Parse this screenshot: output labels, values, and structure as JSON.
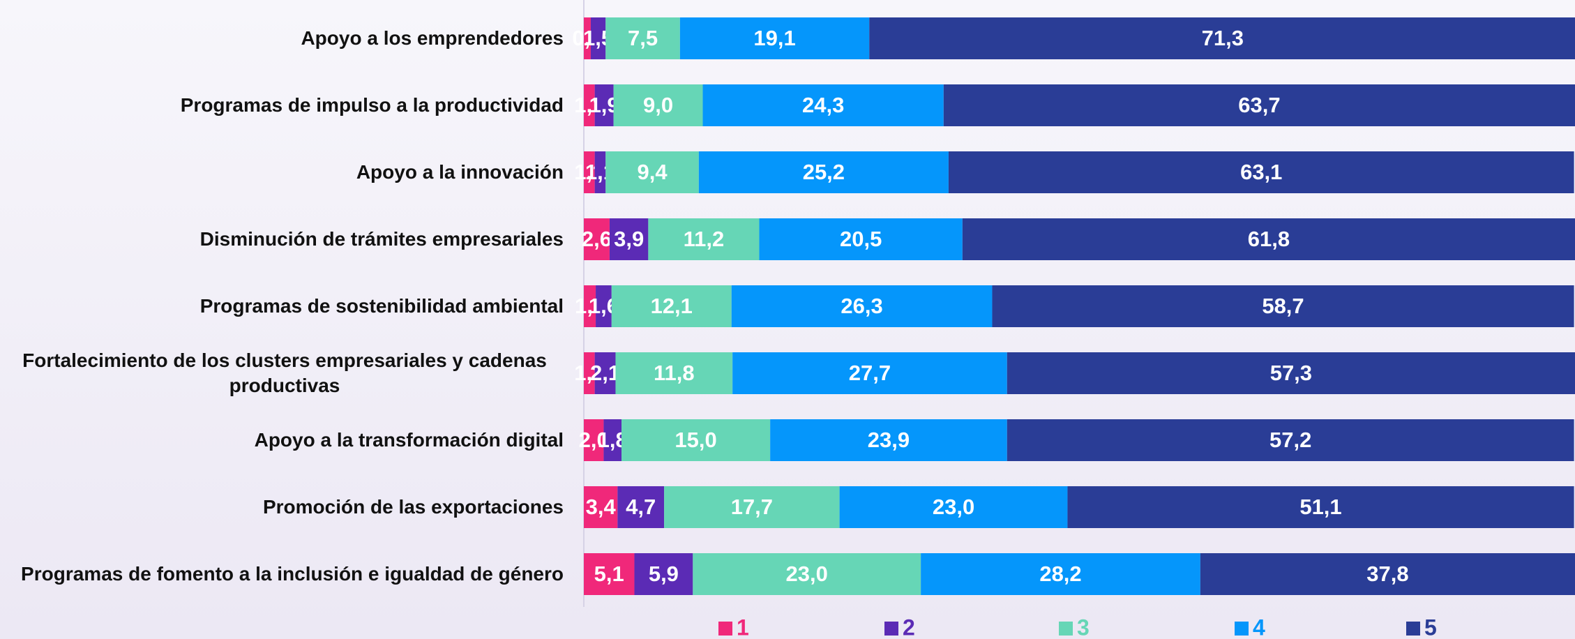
{
  "chart_data": {
    "type": "stacked-barh",
    "categories": [
      "Apoyo a los emprendedores",
      "Programas de impulso a la productividad",
      "Apoyo a la innovación",
      "Disminución de trámites empresariales",
      "Programas de sostenibilidad ambiental",
      "Fortalecimiento de los clusters empresariales y cadenas productivas",
      "Apoyo a la transformación digital",
      "Promoción de las exportaciones",
      "Programas de fomento a la inclusión e igualdad de género"
    ],
    "xlim": [
      0,
      100
    ],
    "legend": "bottom",
    "series": [
      {
        "name": "1",
        "color": "#f0287a",
        "values": [
          0.7,
          1.1,
          1.1,
          2.6,
          1.2,
          1.1,
          2.0,
          3.4,
          5.1
        ],
        "value_labels": [
          "0,7",
          "1,1",
          "1,1",
          "2,6",
          "1,2",
          "1,1",
          "2,0",
          "3,4",
          "5,1"
        ]
      },
      {
        "name": "2",
        "color": "#5b2bb5",
        "values": [
          1.5,
          1.9,
          1.1,
          3.9,
          1.6,
          2.1,
          1.8,
          4.7,
          5.9
        ],
        "value_labels": [
          "1,5",
          "1,9",
          "1,1",
          "3,9",
          "1,6",
          "2,1",
          "1,8",
          "4,7",
          "5,9"
        ]
      },
      {
        "name": "3",
        "color": "#66d6b6",
        "values": [
          7.5,
          9.0,
          9.4,
          11.2,
          12.1,
          11.8,
          15.0,
          17.7,
          23.0
        ],
        "value_labels": [
          "7,5",
          "9,0",
          "9,4",
          "11,2",
          "12,1",
          "11,8",
          "15,0",
          "17,7",
          "23,0"
        ]
      },
      {
        "name": "4",
        "color": "#0596fb",
        "values": [
          19.1,
          24.3,
          25.2,
          20.5,
          26.3,
          27.7,
          23.9,
          23.0,
          28.2
        ],
        "value_labels": [
          "19,1",
          "24,3",
          "25,2",
          "20,5",
          "26,3",
          "27,7",
          "23,9",
          "23,0",
          "28,2"
        ]
      },
      {
        "name": "5",
        "color": "#2a3d96",
        "values": [
          71.3,
          63.7,
          63.1,
          61.8,
          58.7,
          57.3,
          57.2,
          51.1,
          37.8
        ],
        "value_labels": [
          "71,3",
          "63,7",
          "63,1",
          "61,8",
          "58,7",
          "57,3",
          "57,2",
          "51,1",
          "37,8"
        ]
      }
    ]
  }
}
